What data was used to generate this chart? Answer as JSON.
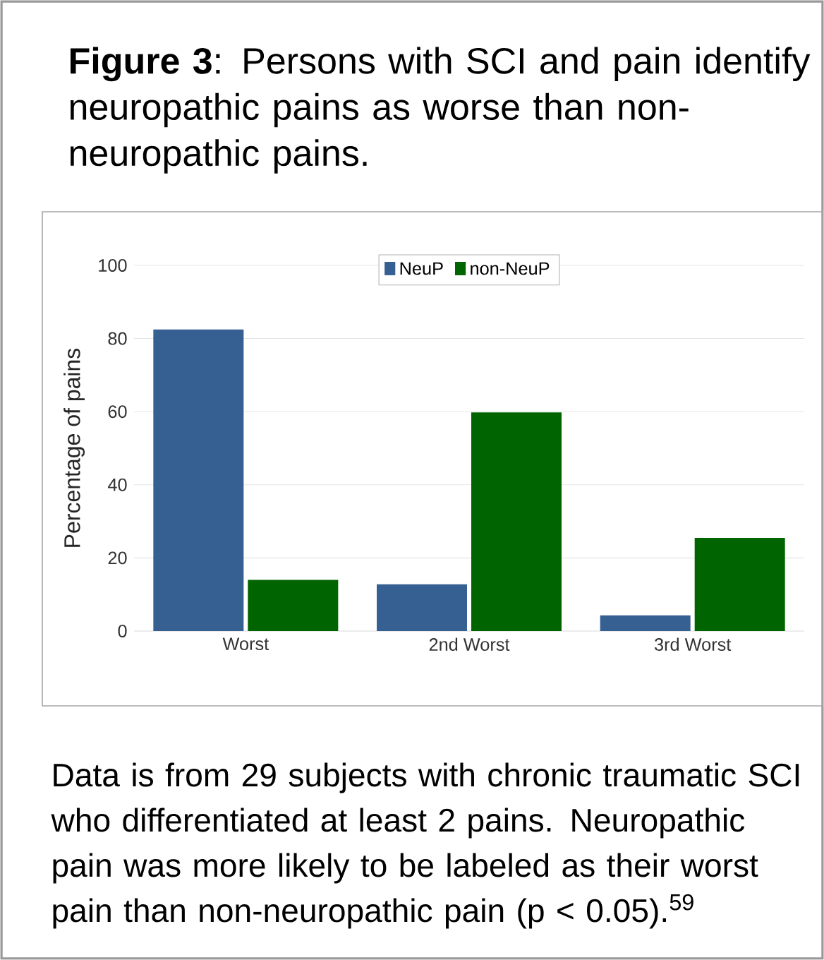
{
  "chart_data": {
    "type": "bar",
    "title": "**Figure 3**: Persons with SCI and pain identify neuropathic pains as worse than non-neuropathic pains.",
    "ylabel": "Percentage of pains",
    "categories": [
      "Worst",
      "2nd Worst",
      "3rd Worst"
    ],
    "series": [
      {
        "name": "NeuP",
        "color": "#376092",
        "values": [
          82.5,
          12.8,
          4.3
        ]
      },
      {
        "name": "non-NeuP",
        "color": "#006400",
        "values": [
          14.0,
          59.8,
          25.5
        ]
      }
    ],
    "ylim": [
      0,
      100
    ],
    "yticks": [
      0,
      20,
      40,
      60,
      80,
      100
    ],
    "grid": "y",
    "legend": "top",
    "annotations": [
      "Data is from 29 subjects with chronic traumatic SCI who differentiated at least 2 pains. Neuropathic pain was more likely to be labeled as their worst pain than non-neuropathic pain (p < 0.05).$^{59}$"
    ]
  }
}
